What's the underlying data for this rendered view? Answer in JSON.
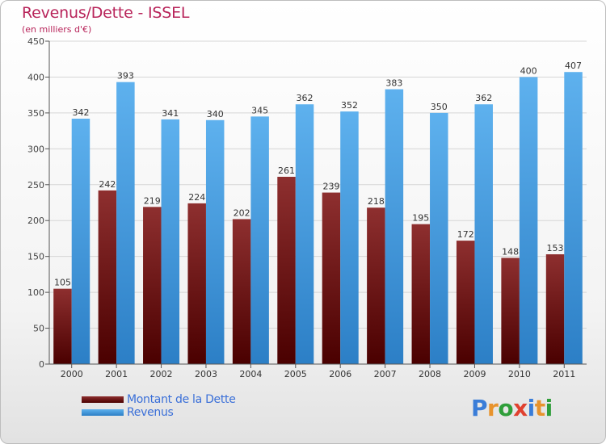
{
  "colors": {
    "debt_light": "#8e2f2f",
    "debt_dark": "#4a0000",
    "rev_light": "#5eb1ee",
    "rev_dark": "#2c7fc6",
    "title": "#b8245a",
    "legend_text": "#3a6fd8"
  },
  "logo": {
    "text": "Proxiti"
  },
  "chart_data": {
    "type": "bar",
    "title": "Revenus/Dette - ISSEL",
    "subtitle": "(en milliers d'€)",
    "categories": [
      "2000",
      "2001",
      "2002",
      "2003",
      "2004",
      "2005",
      "2006",
      "2007",
      "2008",
      "2009",
      "2010",
      "2011"
    ],
    "series": [
      {
        "name": "Montant de la Dette",
        "values": [
          105,
          242,
          219,
          224,
          202,
          261,
          239,
          218,
          195,
          172,
          148,
          153
        ]
      },
      {
        "name": "Revenus",
        "values": [
          342,
          393,
          341,
          340,
          345,
          362,
          352,
          383,
          350,
          362,
          400,
          407
        ]
      }
    ],
    "ylim": [
      0,
      450
    ],
    "yticks": [
      0,
      50,
      100,
      150,
      200,
      250,
      300,
      350,
      400,
      450
    ],
    "grid": true,
    "legend_position": "bottom-left"
  }
}
